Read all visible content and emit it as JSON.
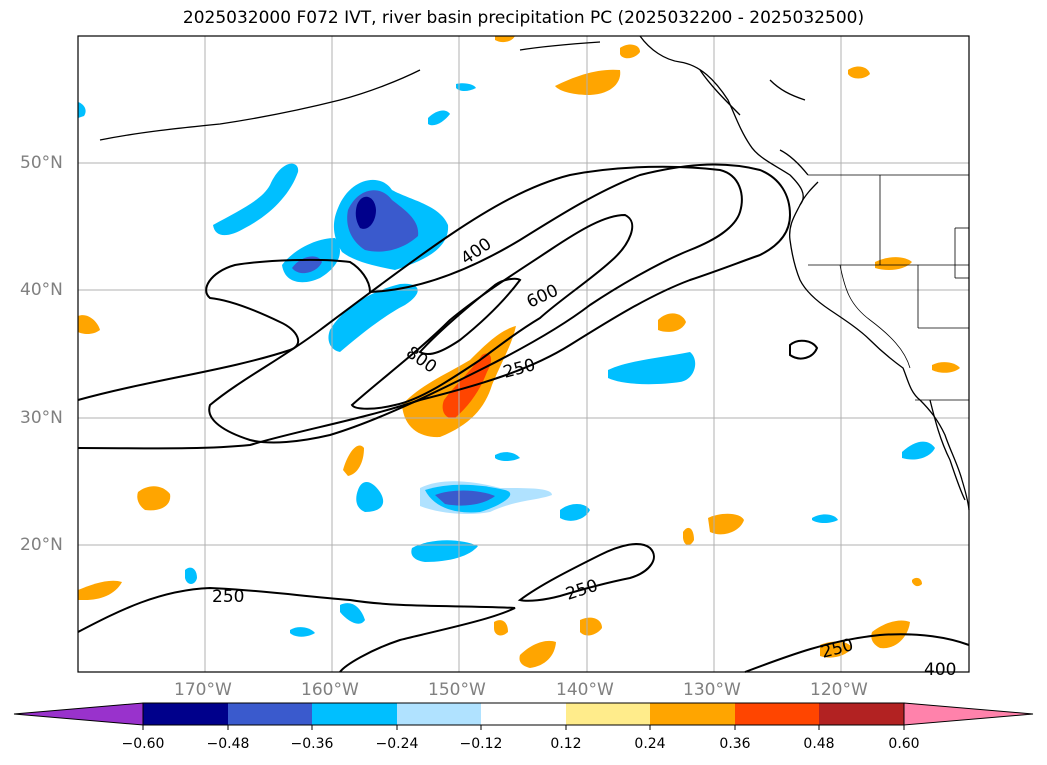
{
  "title": "2025032000 F072 IVT, river basin precipitation PC (2025032200 - 2025032500)",
  "lat_labels": [
    "50°N",
    "40°N",
    "30°N",
    "20°N"
  ],
  "lon_labels": [
    "170°W",
    "160°W",
    "150°W",
    "140°W",
    "130°W",
    "120°W"
  ],
  "contour_labels": [
    "400",
    "600",
    "800",
    "250",
    "250",
    "250",
    "250",
    "400"
  ],
  "colorbar": {
    "ticks": [
      "−0.60",
      "−0.48",
      "−0.36",
      "−0.24",
      "−0.12",
      "0.12",
      "0.24",
      "0.36",
      "0.48",
      "0.60"
    ],
    "colors": [
      "#9932CC",
      "#00008B",
      "#3A5ACD",
      "#00BFFF",
      "#B0E2FF",
      "#FFFFFF",
      "#FFEC8B",
      "#FFA500",
      "#FF4500",
      "#B22222",
      "#FF82AB"
    ]
  }
}
